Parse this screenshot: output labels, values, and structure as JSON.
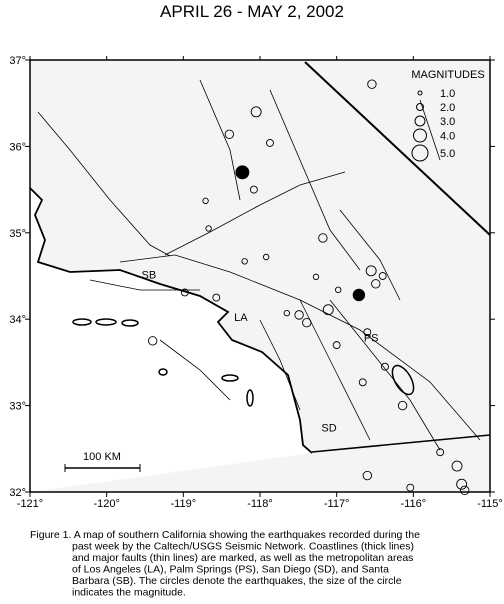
{
  "map": {
    "title": "APRIL 26 - MAY 2, 2002",
    "lonlim": [
      -121,
      -115
    ],
    "latlim": [
      32,
      37
    ],
    "xticks": [
      {
        "value": -121,
        "label": "-121°"
      },
      {
        "value": -120,
        "label": "-120°"
      },
      {
        "value": -119,
        "label": "-119°"
      },
      {
        "value": -118,
        "label": "-118°"
      },
      {
        "value": -117,
        "label": "-117°"
      },
      {
        "value": -116,
        "label": "-116°"
      },
      {
        "value": -115,
        "label": "-115°"
      }
    ],
    "yticks": [
      {
        "value": 32,
        "label": "32°"
      },
      {
        "value": 33,
        "label": "33°"
      },
      {
        "value": 34,
        "label": "34°"
      },
      {
        "value": 35,
        "label": "35°"
      },
      {
        "value": 36,
        "label": "36°"
      },
      {
        "value": 37,
        "label": "37°"
      }
    ],
    "legend": {
      "title": "MAGNITUDES",
      "items": [
        {
          "value": 1,
          "label": "1.0"
        },
        {
          "value": 2,
          "label": "2.0"
        },
        {
          "value": 3,
          "label": "3.0"
        },
        {
          "value": 4,
          "label": "4.0"
        },
        {
          "value": 5,
          "label": "5.0"
        }
      ]
    },
    "places": [
      {
        "label": "SB",
        "lon": -119.45,
        "lat": 34.47
      },
      {
        "label": "LA",
        "lon": -118.25,
        "lat": 33.98
      },
      {
        "label": "PS",
        "lon": -116.55,
        "lat": 33.74
      },
      {
        "label": "SD",
        "lon": -117.1,
        "lat": 32.7
      }
    ],
    "scale_label": "100 KM",
    "earthquakes": [
      {
        "lon": -118.23,
        "lat": 35.7,
        "mag": 4
      },
      {
        "lon": -118.05,
        "lat": 36.4,
        "mag": 3
      },
      {
        "lon": -117.87,
        "lat": 36.04,
        "mag": 2
      },
      {
        "lon": -116.54,
        "lat": 36.72,
        "mag": 2.5
      },
      {
        "lon": -118.08,
        "lat": 35.5,
        "mag": 2
      },
      {
        "lon": -117.18,
        "lat": 34.94,
        "mag": 2.5
      },
      {
        "lon": -116.55,
        "lat": 34.56,
        "mag": 3
      },
      {
        "lon": -116.71,
        "lat": 34.28,
        "mag": 3.5
      },
      {
        "lon": -116.49,
        "lat": 34.41,
        "mag": 2.5
      },
      {
        "lon": -117.11,
        "lat": 34.11,
        "mag": 3
      },
      {
        "lon": -117.49,
        "lat": 34.05,
        "mag": 2.5
      },
      {
        "lon": -117.39,
        "lat": 33.96,
        "mag": 2.5
      },
      {
        "lon": -119.4,
        "lat": 33.75,
        "mag": 2.5
      },
      {
        "lon": -118.4,
        "lat": 36.14,
        "mag": 2.5
      },
      {
        "lon": -116.66,
        "lat": 33.27,
        "mag": 2
      },
      {
        "lon": -116.37,
        "lat": 33.45,
        "mag": 2
      },
      {
        "lon": -116.14,
        "lat": 33.0,
        "mag": 2.5
      },
      {
        "lon": -116.6,
        "lat": 32.19,
        "mag": 2.5
      },
      {
        "lon": -115.43,
        "lat": 32.3,
        "mag": 3
      },
      {
        "lon": -115.37,
        "lat": 32.09,
        "mag": 3
      },
      {
        "lon": -115.33,
        "lat": 32.02,
        "mag": 2.5
      },
      {
        "lon": -115.65,
        "lat": 32.46,
        "mag": 2
      },
      {
        "lon": -116.04,
        "lat": 32.05,
        "mag": 2
      },
      {
        "lon": -118.98,
        "lat": 34.31,
        "mag": 2
      },
      {
        "lon": -118.57,
        "lat": 34.25,
        "mag": 2
      },
      {
        "lon": -117.0,
        "lat": 33.7,
        "mag": 2
      },
      {
        "lon": -118.67,
        "lat": 35.05,
        "mag": 1.5
      },
      {
        "lon": -118.71,
        "lat": 35.37,
        "mag": 1.5
      },
      {
        "lon": -118.2,
        "lat": 34.67,
        "mag": 1.5
      },
      {
        "lon": -117.92,
        "lat": 34.72,
        "mag": 1.5
      },
      {
        "lon": -117.27,
        "lat": 34.49,
        "mag": 1.5
      },
      {
        "lon": -116.98,
        "lat": 34.34,
        "mag": 1.5
      },
      {
        "lon": -116.6,
        "lat": 33.85,
        "mag": 2
      },
      {
        "lon": -117.65,
        "lat": 34.07,
        "mag": 1.5
      },
      {
        "lon": -116.4,
        "lat": 34.5,
        "mag": 2
      }
    ],
    "caption": [
      "Figure 1. A map of southern California showing the earthquakes recorded during the",
      "past week by the Caltech/USGS Seismic Network.  Coastlines (thick lines)",
      "and major faults (thin lines) are marked, as well as the metropolitan areas",
      "of Los Angeles (LA), Palm Springs (PS), San Diego (SD), and Santa",
      "Barbara (SB).  The circles denote the earthquakes, the size of the circle",
      "indicates the magnitude."
    ]
  }
}
